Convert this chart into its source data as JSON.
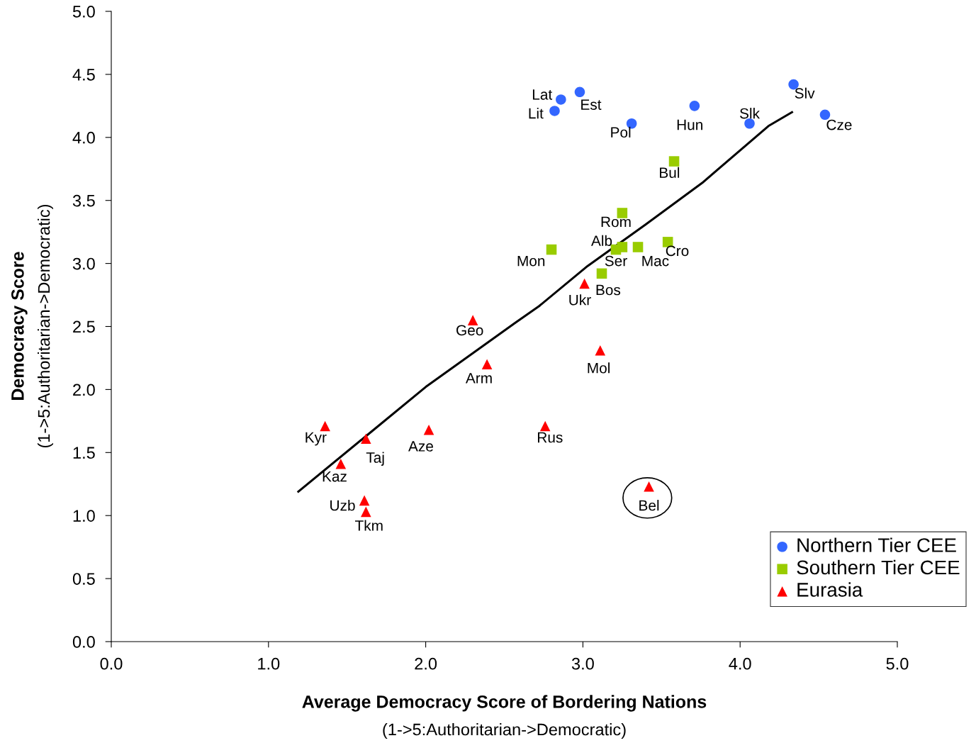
{
  "chart_data": {
    "type": "scatter",
    "xlabel": "Average Democracy Score of Bordering Nations\n(1->5:Authoritarian->Democratic)",
    "ylabel": "Democracy Score\n(1->5:Authoritarian->Democratic)",
    "xlim": [
      0,
      5
    ],
    "ylim": [
      0,
      5
    ],
    "xticks": [
      {
        "value": 0,
        "label": "0.0"
      },
      {
        "value": 1,
        "label": "1.0"
      },
      {
        "value": 2,
        "label": "2.0"
      },
      {
        "value": 3,
        "label": "3.0"
      },
      {
        "value": 4,
        "label": "4.0"
      },
      {
        "value": 5,
        "label": "5.0"
      }
    ],
    "yticks": [
      {
        "value": 0,
        "label": "0.0"
      },
      {
        "value": 0.5,
        "label": "0.5"
      },
      {
        "value": 1,
        "label": "1.0"
      },
      {
        "value": 1.5,
        "label": "1.5"
      },
      {
        "value": 2,
        "label": "2.0"
      },
      {
        "value": 2.5,
        "label": "2.5"
      },
      {
        "value": 3,
        "label": "3.0"
      },
      {
        "value": 3.5,
        "label": "3.5"
      },
      {
        "value": 4,
        "label": "4.0"
      },
      {
        "value": 4.5,
        "label": "4.5"
      },
      {
        "value": 5,
        "label": "5.0"
      }
    ],
    "grid": false,
    "legend": "bottom right",
    "series": [
      {
        "name": "Northern Tier CEE",
        "color": "#3366ff",
        "marker": "circle",
        "x": [
          2.86,
          2.82,
          2.98,
          3.31,
          3.71,
          4.06,
          4.34,
          4.54
        ],
        "values": [
          4.3,
          4.21,
          4.36,
          4.11,
          4.25,
          4.11,
          4.42,
          4.18
        ]
      },
      {
        "name": "Southern Tier CEE",
        "color": "#99cc00",
        "marker": "square",
        "x": [
          3.58,
          3.25,
          3.21,
          3.25,
          3.35,
          3.54,
          2.8,
          3.12
        ],
        "values": [
          3.81,
          3.4,
          3.11,
          3.13,
          3.13,
          3.17,
          3.11,
          2.92
        ]
      },
      {
        "name": "Eurasia",
        "color": "#ff0000",
        "marker": "triangle",
        "x": [
          3.01,
          2.3,
          2.39,
          3.11,
          2.76,
          2.02,
          1.36,
          1.62,
          1.46,
          1.61,
          1.62,
          3.42
        ],
        "values": [
          2.84,
          2.55,
          2.2,
          2.31,
          1.71,
          1.68,
          1.71,
          1.61,
          1.41,
          1.12,
          1.03,
          1.23
        ]
      },
      {
        "type": "line",
        "color": "#000000",
        "marker": "none",
        "x": [
          1.19,
          1.61,
          2.0,
          2.57,
          2.72,
          3.03,
          3.4,
          3.76,
          4.18,
          4.33
        ],
        "values": [
          1.19,
          1.62,
          2.02,
          2.53,
          2.66,
          2.98,
          3.31,
          3.64,
          4.09,
          4.2
        ]
      }
    ],
    "annotations": [
      {
        "text": "Lat",
        "x": 2.86,
        "y": 4.3
      },
      {
        "text": "Lit",
        "x": 2.82,
        "y": 4.21
      },
      {
        "text": "Est",
        "x": 2.98,
        "y": 4.36
      },
      {
        "text": "Pol",
        "x": 3.31,
        "y": 4.11
      },
      {
        "text": "Hun",
        "x": 3.71,
        "y": 4.25
      },
      {
        "text": "Slk",
        "x": 4.06,
        "y": 4.11
      },
      {
        "text": "Slv",
        "x": 4.34,
        "y": 4.42
      },
      {
        "text": "Cze",
        "x": 4.54,
        "y": 4.18
      },
      {
        "text": "Bul",
        "x": 3.58,
        "y": 3.81
      },
      {
        "text": "Rom",
        "x": 3.25,
        "y": 3.4
      },
      {
        "text": "Alb",
        "x": 3.21,
        "y": 3.11
      },
      {
        "text": "Ser",
        "x": 3.25,
        "y": 3.13
      },
      {
        "text": "Mac",
        "x": 3.35,
        "y": 3.13
      },
      {
        "text": "Cro",
        "x": 3.54,
        "y": 3.17
      },
      {
        "text": "Mon",
        "x": 2.8,
        "y": 3.11
      },
      {
        "text": "Bos",
        "x": 3.12,
        "y": 2.92
      },
      {
        "text": "Ukr",
        "x": 3.01,
        "y": 2.84
      },
      {
        "text": "Geo",
        "x": 2.3,
        "y": 2.55
      },
      {
        "text": "Arm",
        "x": 2.39,
        "y": 2.2
      },
      {
        "text": "Mol",
        "x": 3.11,
        "y": 2.31
      },
      {
        "text": "Rus",
        "x": 2.76,
        "y": 1.71
      },
      {
        "text": "Aze",
        "x": 2.02,
        "y": 1.68
      },
      {
        "text": "Kyr",
        "x": 1.36,
        "y": 1.71
      },
      {
        "text": "Taj",
        "x": 1.62,
        "y": 1.61
      },
      {
        "text": "Kaz",
        "x": 1.46,
        "y": 1.41
      },
      {
        "text": "Uzb",
        "x": 1.61,
        "y": 1.12
      },
      {
        "text": "Tkm",
        "x": 1.62,
        "y": 1.03
      },
      {
        "text": "Bel",
        "x": 3.42,
        "y": 1.23
      }
    ]
  }
}
